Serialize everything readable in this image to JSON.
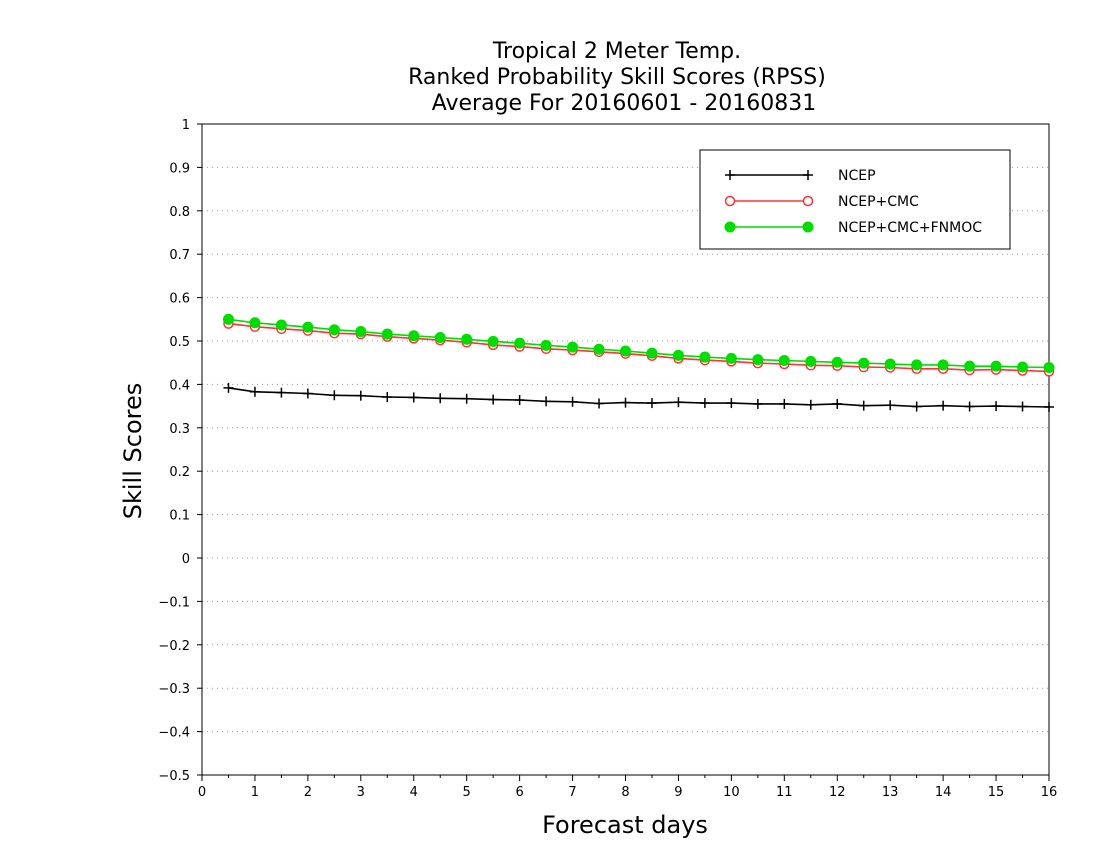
{
  "chart_data": {
    "type": "line",
    "title_lines": [
      "Tropical 2 Meter Temp.",
      "Ranked Probability Skill Scores (RPSS)",
      "Average For 20160601 - 20160831"
    ],
    "xlabel": "Forecast days",
    "ylabel": "Skill Scores",
    "xlim": [
      0,
      16
    ],
    "ylim": [
      -0.5,
      1
    ],
    "x_ticks": [
      0,
      1,
      2,
      3,
      4,
      5,
      6,
      7,
      8,
      9,
      10,
      11,
      12,
      13,
      14,
      15,
      16
    ],
    "y_ticks": [
      -0.5,
      -0.4,
      -0.3,
      -0.2,
      -0.1,
      0,
      0.1,
      0.2,
      0.3,
      0.4,
      0.5,
      0.6,
      0.7,
      0.8,
      0.9,
      1
    ],
    "grid": "horizontal dotted",
    "legend_position": "top-right",
    "x": [
      0.5,
      1,
      1.5,
      2,
      2.5,
      3,
      3.5,
      4,
      4.5,
      5,
      5.5,
      6,
      6.5,
      7,
      7.5,
      8,
      8.5,
      9,
      9.5,
      10,
      10.5,
      11,
      11.5,
      12,
      12.5,
      13,
      13.5,
      14,
      14.5,
      15,
      15.5,
      16
    ],
    "series": [
      {
        "name": "NCEP",
        "color": "#000000",
        "marker": "plus",
        "values": [
          0.392,
          0.383,
          0.381,
          0.379,
          0.375,
          0.374,
          0.371,
          0.37,
          0.368,
          0.367,
          0.365,
          0.364,
          0.361,
          0.36,
          0.356,
          0.358,
          0.357,
          0.359,
          0.357,
          0.357,
          0.355,
          0.355,
          0.353,
          0.355,
          0.351,
          0.352,
          0.349,
          0.351,
          0.349,
          0.35,
          0.349,
          0.348
        ]
      },
      {
        "name": "NCEP+CMC",
        "color": "#ff3333",
        "marker": "open-circle",
        "values": [
          0.54,
          0.533,
          0.528,
          0.524,
          0.518,
          0.516,
          0.51,
          0.506,
          0.502,
          0.497,
          0.491,
          0.487,
          0.482,
          0.479,
          0.475,
          0.471,
          0.466,
          0.46,
          0.456,
          0.453,
          0.449,
          0.447,
          0.444,
          0.443,
          0.44,
          0.439,
          0.436,
          0.436,
          0.433,
          0.434,
          0.432,
          0.43
        ]
      },
      {
        "name": "NCEP+CMC+FNMOC",
        "color": "#00dd00",
        "marker": "filled-circle",
        "values": [
          0.55,
          0.542,
          0.537,
          0.532,
          0.526,
          0.522,
          0.516,
          0.512,
          0.508,
          0.504,
          0.499,
          0.495,
          0.49,
          0.486,
          0.481,
          0.477,
          0.472,
          0.467,
          0.463,
          0.46,
          0.457,
          0.455,
          0.453,
          0.451,
          0.449,
          0.447,
          0.445,
          0.445,
          0.442,
          0.442,
          0.44,
          0.439
        ]
      }
    ]
  }
}
